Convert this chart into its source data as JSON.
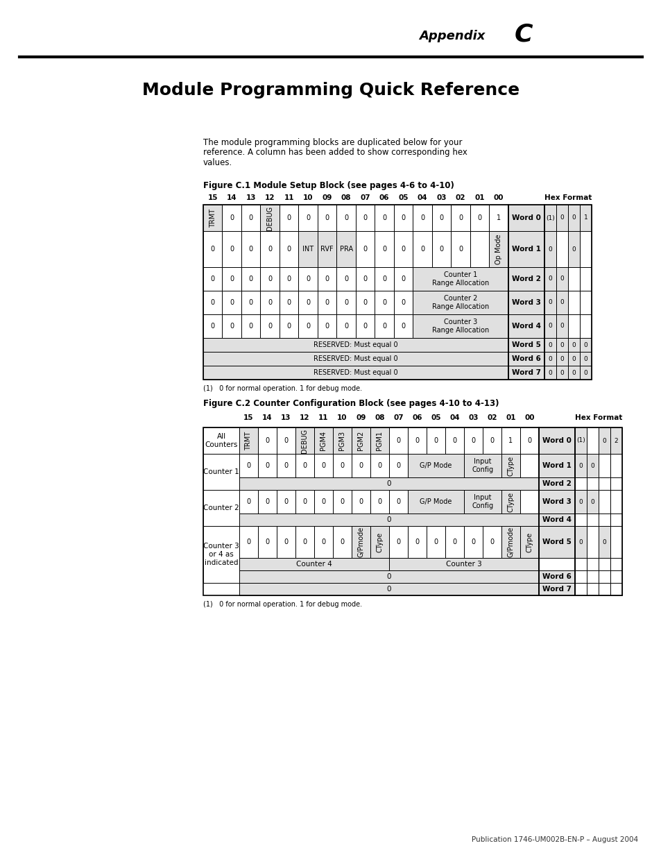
{
  "page_title_appendix": "Appendix",
  "page_title_letter": "C",
  "main_title": "Module Programming Quick Reference",
  "intro_text_1": "The module programming blocks are duplicated below for your",
  "intro_text_2": "reference. A column has been added to show corresponding hex",
  "intro_text_3": "values.",
  "fig1_title": "Figure C.1 Module Setup Block (see pages 4-6 to 4-10)",
  "fig2_title": "Figure C.2 Counter Configuration Block (see pages 4-10 to 4-13)",
  "footnote": "(1)   0 for normal operation. 1 for debug mode.",
  "footer": "Publication 1746-UM002B-EN-P – August 2004",
  "bit_headers": [
    "15",
    "14",
    "13",
    "12",
    "11",
    "10",
    "09",
    "08",
    "07",
    "06",
    "05",
    "04",
    "03",
    "02",
    "01",
    "00"
  ],
  "hex_format_label": "Hex Format",
  "bg_color": "#ffffff",
  "cell_gray": "#e0e0e0",
  "cell_white": "#ffffff",
  "border_color": "#000000"
}
